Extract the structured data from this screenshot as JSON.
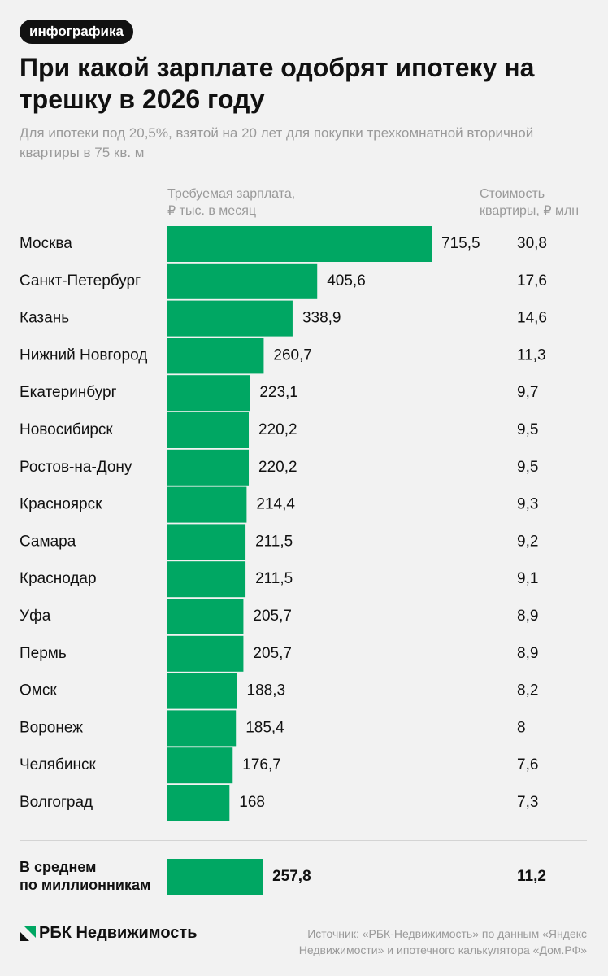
{
  "badge": "инфографика",
  "title": "При какой зарплате одобрят ипотеку на трешку в 2026 году",
  "subtitle": "Для ипотеки под 20,5%, взятой на 20 лет для покупки трехкомнатной вторичной квартиры в 75 кв. м",
  "columns": {
    "salary_header_1": "Требуемая зарплата,",
    "salary_header_2": "₽ тыс. в месяц",
    "price_header_1": "Стоимость",
    "price_header_2": "квартиры, ₽ млн"
  },
  "colors": {
    "bar": "#00a763",
    "text": "#111111",
    "muted": "#9a9a9a"
  },
  "chart_data": {
    "type": "bar",
    "orientation": "horizontal",
    "categories": [
      "Москва",
      "Санкт-Петербург",
      "Казань",
      "Нижний Новгород",
      "Екатеринбург",
      "Новосибирск",
      "Ростов-на-Дону",
      "Красноярск",
      "Самара",
      "Краснодар",
      "Уфа",
      "Пермь",
      "Омск",
      "Воронеж",
      "Челябинск",
      "Волгоград"
    ],
    "values": [
      715.5,
      405.6,
      338.9,
      260.7,
      223.1,
      220.2,
      220.2,
      214.4,
      211.5,
      211.5,
      205.7,
      205.7,
      188.3,
      185.4,
      176.7,
      168
    ],
    "value_labels": [
      "715,5",
      "405,6",
      "338,9",
      "260,7",
      "223,1",
      "220,2",
      "220,2",
      "214,4",
      "211,5",
      "211,5",
      "205,7",
      "205,7",
      "188,3",
      "185,4",
      "176,7",
      "168"
    ],
    "price_labels": [
      "30,8",
      "17,6",
      "14,6",
      "11,3",
      "9,7",
      "9,5",
      "9,5",
      "9,3",
      "9,2",
      "9,1",
      "8,9",
      "8,9",
      "8,2",
      "8",
      "7,6",
      "7,3"
    ],
    "average": {
      "label_1": "В среднем",
      "label_2": "по миллионникам",
      "value": 257.8,
      "value_label": "257,8",
      "price_label": "11,2"
    },
    "xlim": [
      0,
      715.5
    ]
  },
  "footer": {
    "logo": "РБК Недвижимость",
    "source_1": "Источник: «РБК-Недвижимость» по данным «Яндекс",
    "source_2": "Недвижимости» и ипотечного калькулятора «Дом.РФ»"
  }
}
